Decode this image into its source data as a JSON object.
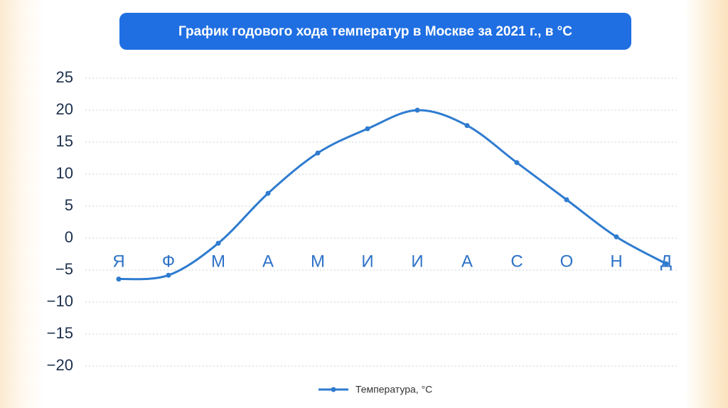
{
  "chart_data": {
    "type": "line",
    "title": "График годового хода температур в Москве за 2021 г., в °С",
    "categories": [
      "Я",
      "Ф",
      "М",
      "А",
      "М",
      "И",
      "И",
      "А",
      "С",
      "О",
      "Н",
      "Д"
    ],
    "series": [
      {
        "name": "Температура, °С",
        "color": "#2e7bcf",
        "values": [
          -6.4,
          -5.8,
          -0.8,
          7.0,
          13.3,
          17.1,
          20.0,
          17.6,
          11.8,
          6.0,
          0.2,
          -4.0
        ]
      }
    ],
    "ylim": [
      -20,
      25
    ],
    "yticks": [
      {
        "value": -20,
        "label": "−20"
      },
      {
        "value": -15,
        "label": "−15"
      },
      {
        "value": -10,
        "label": "−10"
      },
      {
        "value": -5,
        "label": "−5"
      },
      0,
      5,
      10,
      15,
      20,
      25
    ],
    "grid": true,
    "legend": "bottom"
  }
}
